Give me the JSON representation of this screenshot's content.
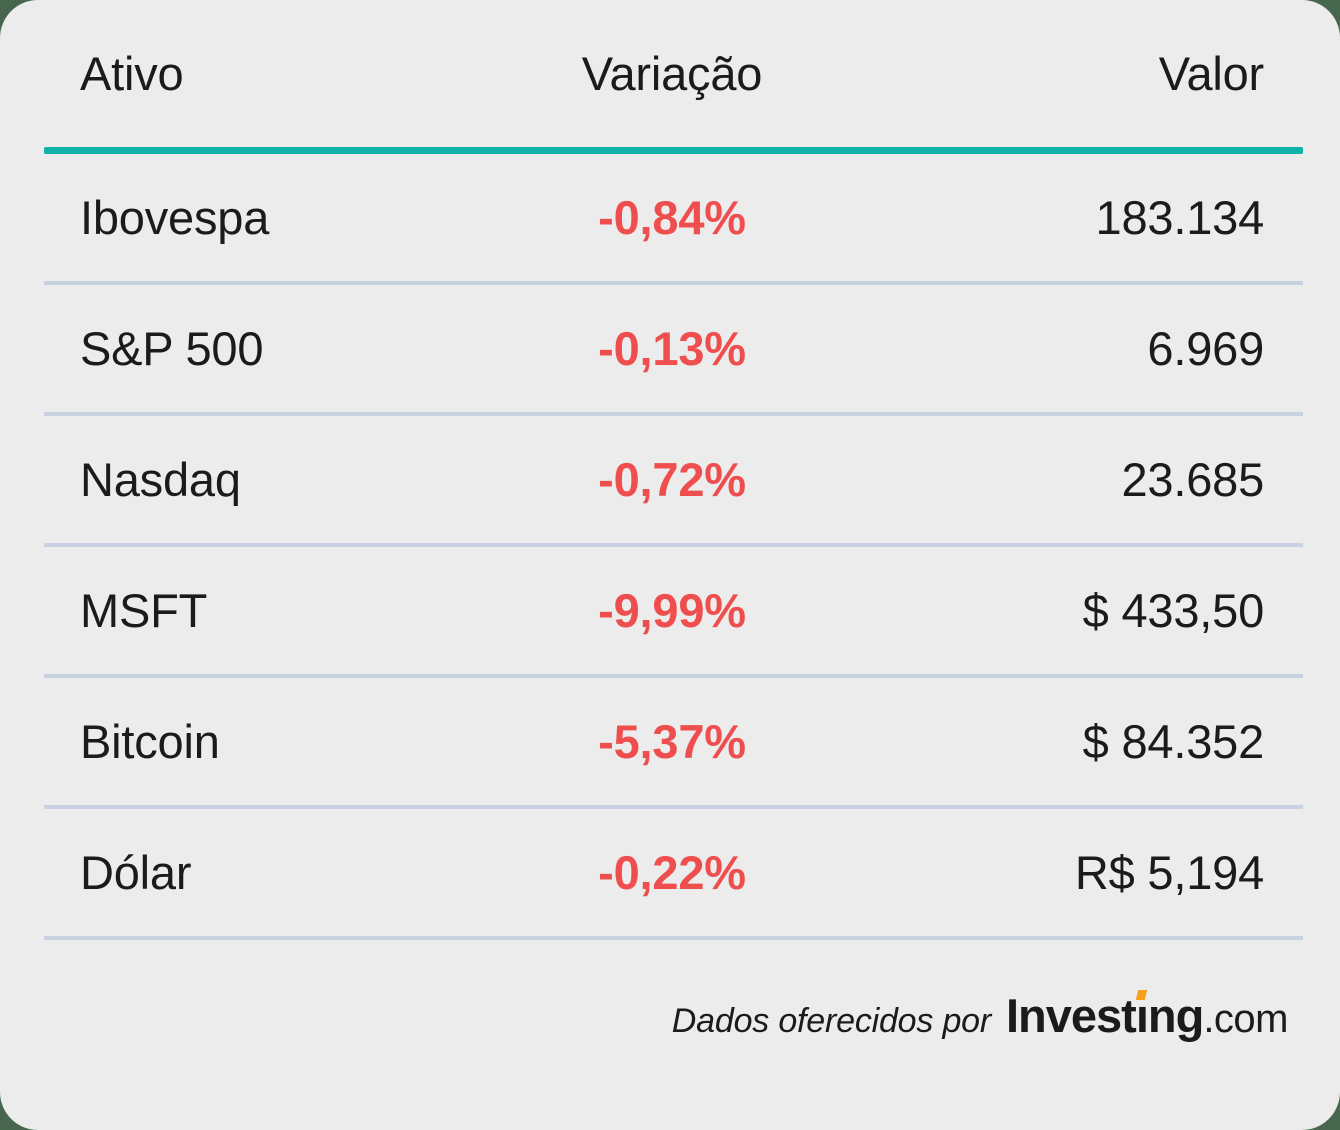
{
  "theme": {
    "page_background": "#47664d",
    "card_background": "#ececec",
    "text_color": "#1b1b1b",
    "negative_color": "#ee4f4e",
    "header_rule_color": "#0fb1a8",
    "row_divider_color": "#c8d1e0",
    "logo_accent_color": "#f6a01b"
  },
  "table": {
    "headers": [
      "Ativo",
      "Variação",
      "Valor"
    ],
    "rows": [
      {
        "asset": "Ibovespa",
        "change": "-0,84%",
        "value": "183.134"
      },
      {
        "asset": "S&P 500",
        "change": "-0,13%",
        "value": "6.969"
      },
      {
        "asset": "Nasdaq",
        "change": "-0,72%",
        "value": "23.685"
      },
      {
        "asset": "MSFT",
        "change": "-9,99%",
        "value": "$ 433,50"
      },
      {
        "asset": "Bitcoin",
        "change": "-5,37%",
        "value": "$ 84.352"
      },
      {
        "asset": "Dólar",
        "change": "-0,22%",
        "value": "R$ 5,194"
      }
    ]
  },
  "footer": {
    "credit_text": "Dados oferecidos por",
    "logo": {
      "part1": "Invest",
      "i_glyph": "ı",
      "part2": "ng",
      "domain": ".com"
    }
  },
  "chart_data": {
    "type": "table",
    "columns": [
      "Ativo",
      "Variação",
      "Valor"
    ],
    "rows": [
      [
        "Ibovespa",
        "-0,84%",
        "183.134"
      ],
      [
        "S&P 500",
        "-0,13%",
        "6.969"
      ],
      [
        "Nasdaq",
        "-0,72%",
        "23.685"
      ],
      [
        "MSFT",
        "-9,99%",
        "$ 433,50"
      ],
      [
        "Bitcoin",
        "-5,37%",
        "$ 84.352"
      ],
      [
        "Dólar",
        "-0,22%",
        "R$ 5,194"
      ]
    ],
    "variation_pct": [
      -0.84,
      -0.13,
      -0.72,
      -9.99,
      -5.37,
      -0.22
    ],
    "annotations": [
      "Dados oferecidos por Investing.com"
    ],
    "layout_hints": {
      "all_variations_negative": true,
      "negative_text_color": "#ee4f4e",
      "header_underline_color": "#0fb1a8"
    }
  }
}
